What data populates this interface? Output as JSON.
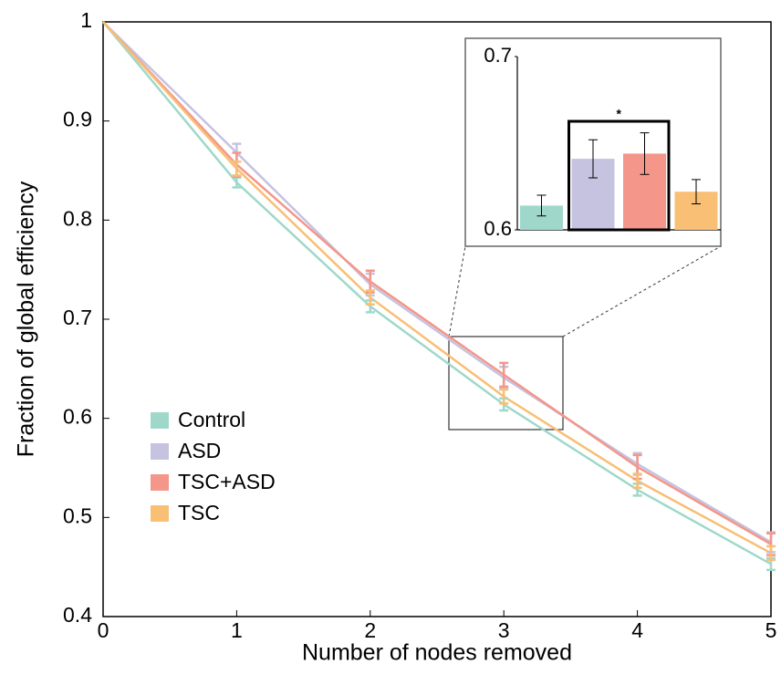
{
  "chart_data": [
    {
      "type": "line",
      "xlabel": "Number of nodes removed",
      "ylabel": "Fraction of global efficiency",
      "x": [
        0,
        1,
        2,
        3,
        4,
        5
      ],
      "xlim": [
        0,
        5
      ],
      "ylim": [
        0.4,
        1
      ],
      "xticks": [
        0,
        1,
        2,
        3,
        4,
        5
      ],
      "yticks": [
        0.4,
        0.5,
        0.6,
        0.7,
        0.8,
        0.9,
        1
      ],
      "legend": "lower-left",
      "series": [
        {
          "name": "Control",
          "color": "#9fd8cb",
          "values": [
            1,
            0.838,
            0.713,
            0.614,
            0.528,
            0.453
          ],
          "errors": [
            0,
            0.005,
            0.006,
            0.006,
            0.006,
            0.006
          ]
        },
        {
          "name": "ASD",
          "color": "#c5c3e0",
          "values": [
            1,
            0.868,
            0.735,
            0.641,
            0.554,
            0.475
          ],
          "errors": [
            0,
            0.009,
            0.011,
            0.011,
            0.011,
            0.01
          ]
        },
        {
          "name": "TSC+ASD",
          "color": "#f4968a",
          "values": [
            1,
            0.856,
            0.738,
            0.644,
            0.551,
            0.473
          ],
          "errors": [
            0,
            0.012,
            0.011,
            0.012,
            0.012,
            0.011
          ]
        },
        {
          "name": "TSC",
          "color": "#f8bf75",
          "values": [
            1,
            0.852,
            0.722,
            0.622,
            0.537,
            0.464
          ],
          "errors": [
            0,
            0.007,
            0.007,
            0.007,
            0.007,
            0.007
          ]
        }
      ]
    },
    {
      "type": "bar",
      "categories": [
        null,
        null,
        null,
        null
      ],
      "values": [
        0.614,
        0.641,
        0.644,
        0.622
      ],
      "errors": [
        0.006,
        0.011,
        0.012,
        0.007
      ],
      "colors": [
        "#9fd8cb",
        "#c5c3e0",
        "#f4968a",
        "#f8bf75"
      ],
      "ylim": [
        0.6,
        0.7
      ],
      "yticks": [
        0.6,
        0.7
      ],
      "annotation": "*"
    }
  ]
}
